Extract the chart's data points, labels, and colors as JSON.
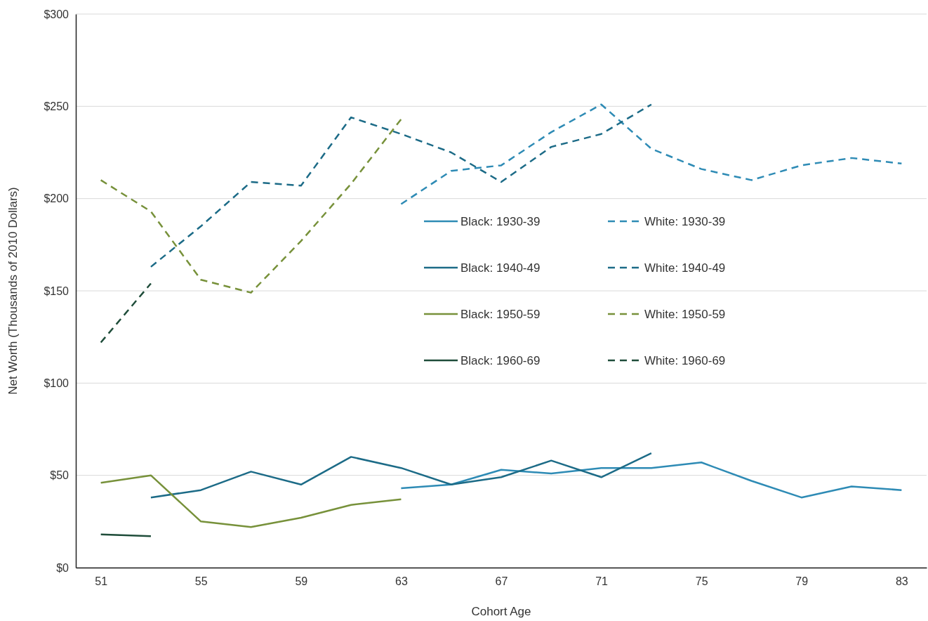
{
  "chart_data": {
    "type": "line",
    "xlabel": "Cohort Age",
    "ylabel": "Net Worth (Thousands of 2010 Dollars)",
    "xlim": [
      50,
      84
    ],
    "xticks": [
      51,
      55,
      59,
      63,
      67,
      71,
      75,
      79,
      83
    ],
    "ylim": [
      0,
      300
    ],
    "yticks": [
      {
        "value": 0,
        "label": "$0"
      },
      {
        "value": 50,
        "label": "$50"
      },
      {
        "value": 100,
        "label": "$100"
      },
      {
        "value": 150,
        "label": "$150"
      },
      {
        "value": 200,
        "label": "$200"
      },
      {
        "value": 250,
        "label": "$250"
      },
      {
        "value": 300,
        "label": "$300"
      }
    ],
    "grid": "y",
    "legend": "center",
    "marker": "none",
    "series": [
      {
        "name": "Black: 1930-39",
        "color": "#2e8bb5",
        "line_style": "solid",
        "x": [
          63,
          65,
          67,
          69,
          71,
          73,
          75,
          77,
          79,
          81,
          83
        ],
        "values": [
          43,
          45,
          53,
          51,
          54,
          54,
          57,
          47,
          38,
          44,
          42
        ]
      },
      {
        "name": "Black: 1940-49",
        "color": "#1c6b87",
        "line_style": "solid",
        "x": [
          53,
          55,
          57,
          59,
          61,
          63,
          65,
          67,
          69,
          71,
          73
        ],
        "values": [
          38,
          42,
          52,
          45,
          60,
          54,
          45,
          49,
          58,
          49,
          62
        ]
      },
      {
        "name": "Black: 1950-59",
        "color": "#77913a",
        "line_style": "solid",
        "x": [
          51,
          53,
          55,
          57,
          59,
          61,
          63
        ],
        "values": [
          46,
          50,
          25,
          22,
          27,
          34,
          37
        ]
      },
      {
        "name": "Black: 1960-69",
        "color": "#1f4d3a",
        "line_style": "solid",
        "x": [
          51,
          53
        ],
        "values": [
          18,
          17
        ]
      },
      {
        "name": "White: 1930-39",
        "color": "#2e8bb5",
        "line_style": "dashed",
        "x": [
          63,
          65,
          67,
          69,
          71,
          73,
          75,
          77,
          79,
          81,
          83
        ],
        "values": [
          197,
          215,
          218,
          236,
          251,
          227,
          216,
          210,
          218,
          222,
          219
        ]
      },
      {
        "name": "White: 1940-49",
        "color": "#1c6b87",
        "line_style": "dashed",
        "x": [
          53,
          55,
          57,
          59,
          61,
          63,
          65,
          67,
          69,
          71,
          73
        ],
        "values": [
          163,
          185,
          209,
          207,
          244,
          235,
          225,
          209,
          228,
          235,
          251
        ]
      },
      {
        "name": "White: 1950-59",
        "color": "#77913a",
        "line_style": "dashed",
        "x": [
          51,
          53,
          55,
          57,
          59,
          61,
          63
        ],
        "values": [
          210,
          193,
          156,
          149,
          177,
          208,
          243
        ]
      },
      {
        "name": "White: 1960-69",
        "color": "#1f4d3a",
        "line_style": "dashed",
        "x": [
          51,
          53
        ],
        "values": [
          122,
          154
        ]
      }
    ]
  }
}
